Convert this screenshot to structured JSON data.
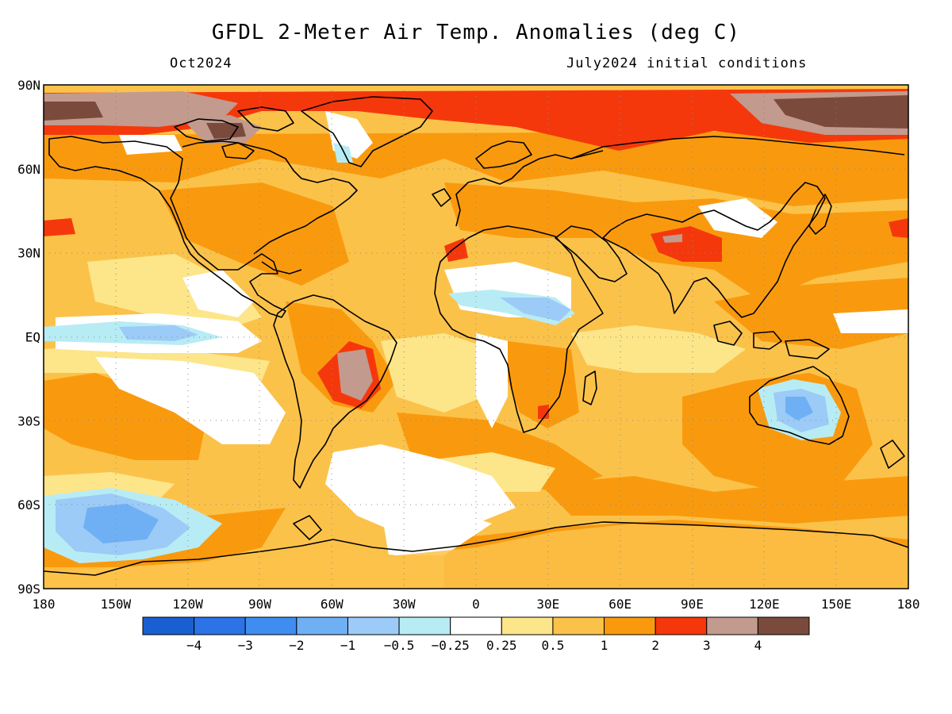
{
  "header": {
    "title": "GFDL 2-Meter Air Temp. Anomalies (deg C)",
    "valid_month": "Oct2024",
    "init": "July2024 initial conditions"
  },
  "axes": {
    "lat_labels": [
      "90N",
      "60N",
      "30N",
      "EQ",
      "30S",
      "60S",
      "90S"
    ],
    "lat_values": [
      90,
      60,
      30,
      0,
      -30,
      -60,
      -90
    ],
    "lon_labels": [
      "180",
      "150W",
      "120W",
      "90W",
      "60W",
      "30W",
      "0",
      "30E",
      "60E",
      "90E",
      "120E",
      "150E",
      "180"
    ],
    "lon_values": [
      -180,
      -150,
      -120,
      -90,
      -60,
      -30,
      0,
      30,
      60,
      90,
      120,
      150,
      180
    ],
    "lon_range": [
      -180,
      180
    ],
    "lat_range": [
      -90,
      90
    ],
    "grid": "dotted"
  },
  "colorbar": {
    "colors": [
      "#1a5fd1",
      "#2b73e6",
      "#3f8df0",
      "#6fb0f5",
      "#9ccbf7",
      "#b8ecf5",
      "#ffffff",
      "#fde58a",
      "#fbc24a",
      "#f99a0e",
      "#f5380c",
      "#c29a8e",
      "#7a4a3c"
    ],
    "labels": [
      "-4",
      "-3",
      "-2",
      "-1",
      "-0.5",
      "-0.25",
      "0.25",
      "0.5",
      "1",
      "2",
      "3",
      "4"
    ]
  }
}
